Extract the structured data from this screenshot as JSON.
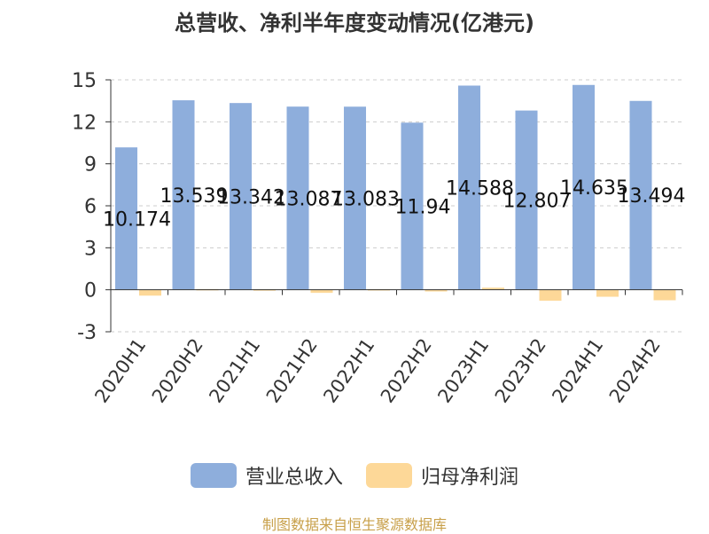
{
  "chart_data": {
    "type": "bar",
    "title": "总营收、净利半年度变动情况(亿港元)",
    "categories": [
      "2020H1",
      "2020H2",
      "2021H1",
      "2021H2",
      "2022H1",
      "2022H2",
      "2023H1",
      "2023H2",
      "2024H1",
      "2024H2"
    ],
    "series": [
      {
        "name": "营业总收入",
        "color": "#8eaedc",
        "values": [
          10.174,
          13.539,
          13.342,
          13.087,
          13.083,
          11.94,
          14.588,
          12.807,
          14.635,
          13.494
        ],
        "labels": [
          "10.174",
          "13.539",
          "13.342",
          "13.087",
          "13.083",
          "11.94",
          "14.588",
          "12.807",
          "14.635",
          "13.494"
        ]
      },
      {
        "name": "归母净利润",
        "color": "#fdd898",
        "values": [
          -0.42,
          0.05,
          0.03,
          -0.22,
          0.04,
          -0.12,
          0.15,
          -0.78,
          -0.5,
          -0.75
        ]
      }
    ],
    "ylim": [
      -3,
      15
    ],
    "yticks": [
      -3,
      0,
      3,
      6,
      9,
      12,
      15
    ],
    "grid": true,
    "legend_position": "bottom"
  },
  "source": "制图数据来自恒生聚源数据库"
}
